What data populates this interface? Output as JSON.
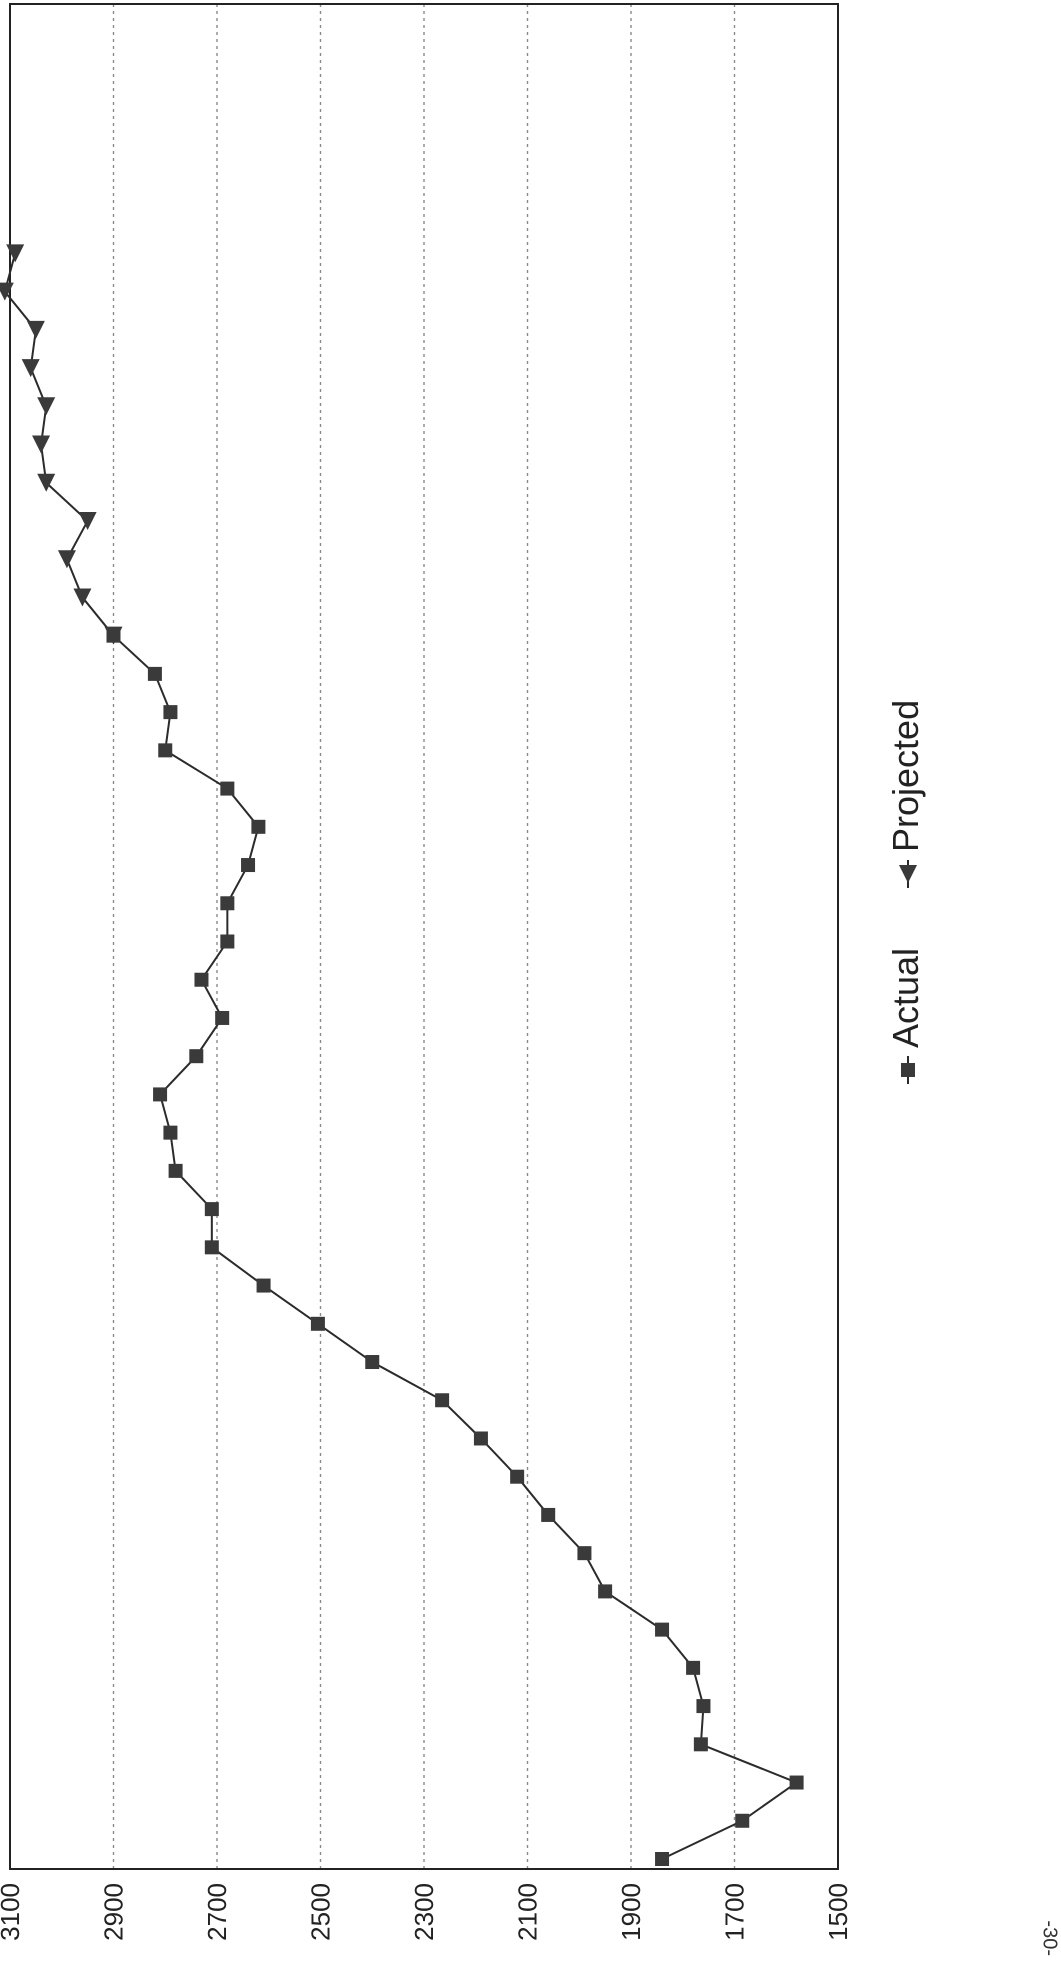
{
  "chart_data": {
    "type": "line",
    "title": "",
    "xlabel": "",
    "ylabel": "",
    "x": [
      1,
      2,
      3,
      4,
      5,
      6,
      7,
      8,
      9,
      10,
      11,
      12,
      13,
      14,
      15,
      16,
      17,
      18,
      19,
      20,
      21,
      22,
      23,
      24,
      25,
      26,
      27,
      28,
      29,
      30,
      31,
      32,
      33,
      34,
      35,
      36,
      37,
      38,
      39,
      40,
      41,
      42,
      43,
      44,
      45,
      46,
      47,
      48,
      49
    ],
    "ylim": [
      1500,
      3100
    ],
    "yticks": [
      1500,
      1700,
      1900,
      2100,
      2300,
      2500,
      2700,
      2900,
      3100
    ],
    "grid": true,
    "legend": "bottom",
    "series": [
      {
        "name": "Actual",
        "marker": "square",
        "values": [
          1840,
          1685,
          1580,
          1765,
          1760,
          1780,
          1840,
          1950,
          1990,
          2060,
          2120,
          2190,
          2265,
          2400,
          2505,
          2610,
          2710,
          2710,
          2780,
          2790,
          2810,
          2740,
          2690,
          2730,
          2680,
          2680,
          2640,
          2620,
          2680,
          2800,
          2790,
          2820,
          2900,
          null,
          null,
          null,
          null,
          null,
          null,
          null,
          null,
          null,
          null,
          null,
          null,
          null,
          null,
          null,
          null
        ]
      },
      {
        "name": "Projected",
        "marker": "triangle",
        "values": [
          null,
          null,
          null,
          null,
          null,
          null,
          null,
          null,
          null,
          null,
          null,
          null,
          null,
          null,
          null,
          null,
          null,
          null,
          null,
          null,
          null,
          null,
          null,
          null,
          null,
          null,
          null,
          null,
          null,
          null,
          null,
          null,
          2900,
          2960,
          2990,
          2950,
          3030,
          3040,
          3030,
          3060,
          3050,
          3110,
          3090,
          null,
          null,
          null,
          null,
          null,
          null
        ]
      }
    ],
    "colors": {
      "line": "#2b2b2b",
      "marker": "#3a3a3a",
      "grid": "#8a8a8a",
      "frame": "#222222"
    }
  },
  "page": {
    "number": "-30-"
  }
}
